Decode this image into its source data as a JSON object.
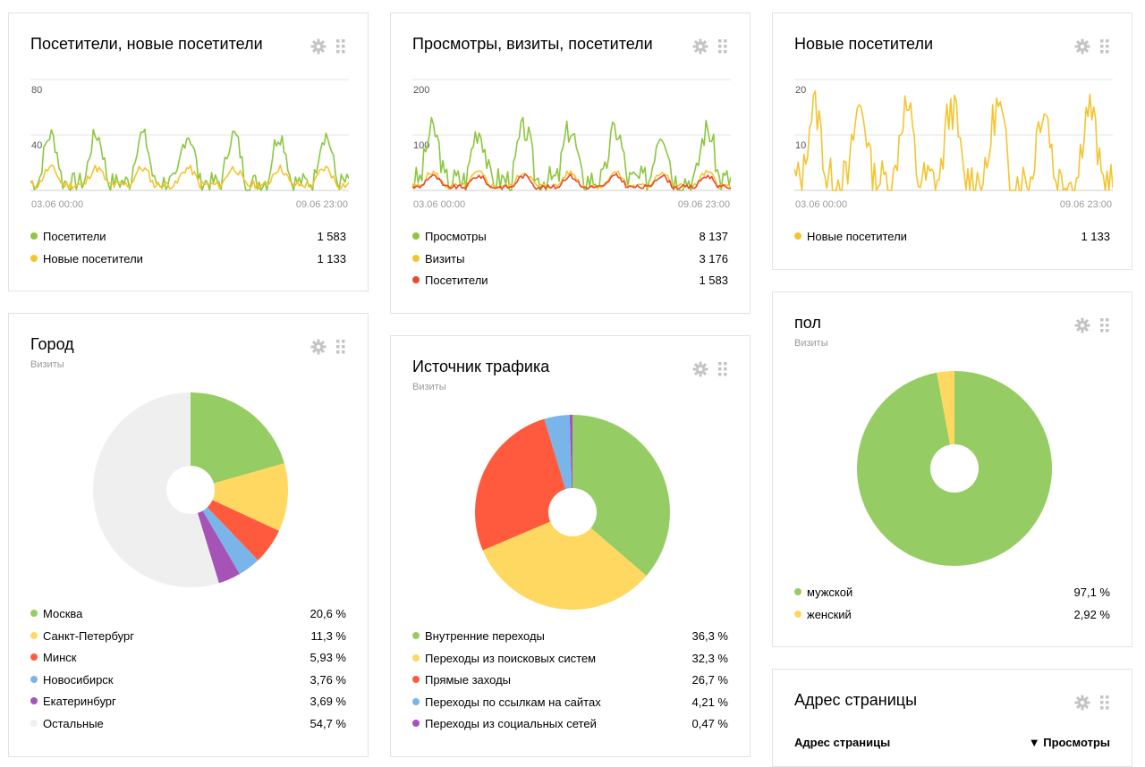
{
  "widgets": {
    "visitors": {
      "title": "Посетители, новые посетители",
      "y_ticks": [
        "80",
        "40"
      ],
      "x_start": "03.06 00:00",
      "x_end": "09.06 23:00",
      "legend": [
        {
          "label": "Посетители",
          "value": "1 583",
          "color": "#8dc63f"
        },
        {
          "label": "Новые посетители",
          "value": "1 133",
          "color": "#f4c430"
        }
      ]
    },
    "views": {
      "title": "Просмотры, визиты, посетители",
      "y_ticks": [
        "200",
        "100"
      ],
      "x_start": "03.06 00:00",
      "x_end": "09.06 23:00",
      "legend": [
        {
          "label": "Просмотры",
          "value": "8 137",
          "color": "#8dc63f"
        },
        {
          "label": "Визиты",
          "value": "3 176",
          "color": "#f4c430"
        },
        {
          "label": "Посетители",
          "value": "1 583",
          "color": "#e94a2c"
        }
      ]
    },
    "new_visitors": {
      "title": "Новые посетители",
      "y_ticks": [
        "20",
        "10"
      ],
      "x_start": "03.06 00:00",
      "x_end": "09.06 23:00",
      "legend": [
        {
          "label": "Новые посетители",
          "value": "1 133",
          "color": "#f4c430"
        }
      ]
    },
    "city": {
      "title": "Город",
      "subtitle": "Визиты",
      "legend": [
        {
          "label": "Москва",
          "value": "20,6 %",
          "color": "#96cc64"
        },
        {
          "label": "Санкт-Петербург",
          "value": "11,3 %",
          "color": "#ffd862"
        },
        {
          "label": "Минск",
          "value": "5,93 %",
          "color": "#ff5a3d"
        },
        {
          "label": "Новосибирск",
          "value": "3,76 %",
          "color": "#79b5e8"
        },
        {
          "label": "Екатеринбург",
          "value": "3,69 %",
          "color": "#a653b8"
        },
        {
          "label": "Остальные",
          "value": "54,7 %",
          "color": "#efefef"
        }
      ]
    },
    "traffic": {
      "title": "Источник трафика",
      "subtitle": "Визиты",
      "legend": [
        {
          "label": "Внутренние переходы",
          "value": "36,3 %",
          "color": "#96cc64"
        },
        {
          "label": "Переходы из поисковых систем",
          "value": "32,3 %",
          "color": "#ffd862"
        },
        {
          "label": "Прямые заходы",
          "value": "26,7 %",
          "color": "#ff5a3d"
        },
        {
          "label": "Переходы по ссылкам на сайтах",
          "value": "4,21 %",
          "color": "#79b5e8"
        },
        {
          "label": "Переходы из социальных сетей",
          "value": "0,47 %",
          "color": "#a653b8"
        }
      ]
    },
    "gender": {
      "title": "пол",
      "subtitle": "Визиты",
      "legend": [
        {
          "label": "мужской",
          "value": "97,1 %",
          "color": "#96cc64"
        },
        {
          "label": "женский",
          "value": "2,92 %",
          "color": "#ffd862"
        }
      ]
    },
    "page_address": {
      "title": "Адрес страницы",
      "col_left": "Адрес страницы",
      "col_right": "▼ Просмотры"
    }
  },
  "icons": {
    "settings": "gear-icon",
    "drag": "drag-handle-icon"
  }
}
